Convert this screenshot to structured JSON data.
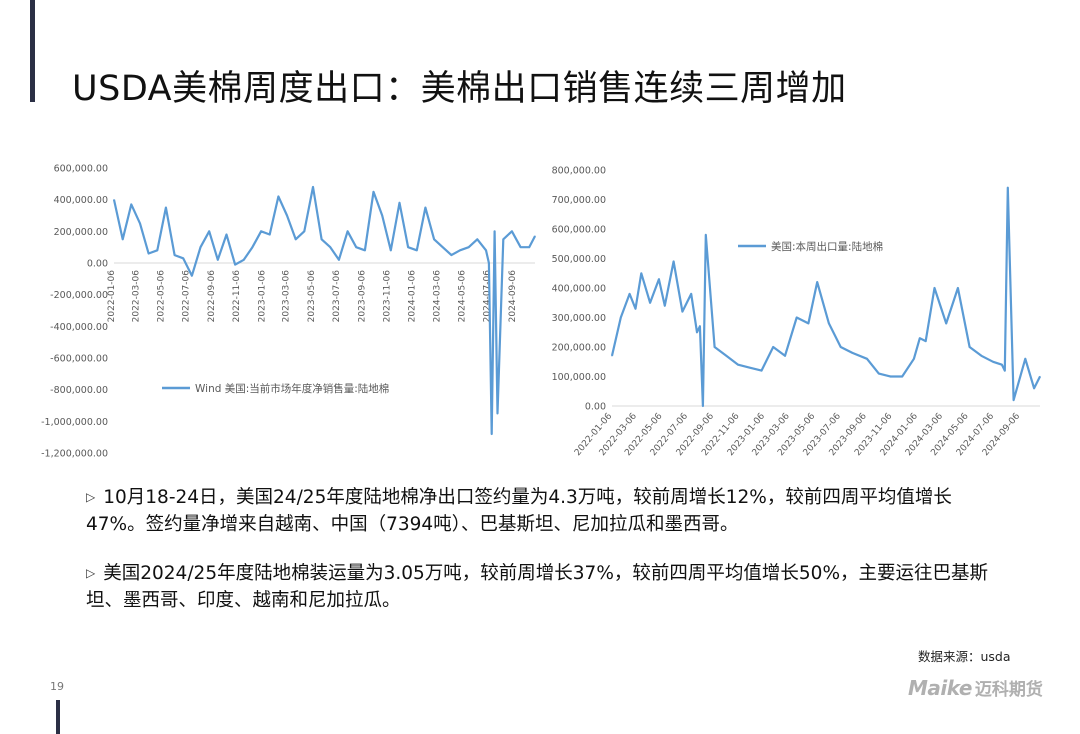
{
  "slide": {
    "title": "USDA美棉周度出口：美棉出口销售连续三周增加",
    "page_number": "19",
    "source": "数据来源：usda",
    "logo": {
      "latin": "Maike",
      "cn": "迈科期货"
    },
    "bullets": [
      "10月18-24日，美国24/25年度陆地棉净出口签约量为4.3万吨，较前周增长12%，较前四周平均值增长47%。签约量净增来自越南、中国（7394吨）、巴基斯坦、尼加拉瓜和墨西哥。",
      "美国2024/25年度陆地棉装运量为3.05万吨，较前周增长37%，较前四周平均值增长50%，主要运往巴基斯坦、墨西哥、印度、越南和尼加拉瓜。"
    ]
  },
  "colors": {
    "line": "#5b9bd5",
    "axis_text": "#595959",
    "accent": "#2b2f45"
  },
  "chart_data": [
    {
      "type": "line",
      "legend": "Wind 美国:当前市场年度净销售量:陆地棉",
      "legend_position": "lower-middle",
      "ylim": [
        -1200000,
        600000
      ],
      "yticks": [
        600000,
        400000,
        200000,
        0,
        -200000,
        -400000,
        -600000,
        -800000,
        -1000000,
        -1200000
      ],
      "ytick_labels": [
        "600,000.00",
        "400,000.00",
        "200,000.00",
        "0.00",
        "-200,000.00",
        "-400,000.00",
        "-600,000.00",
        "-800,000.00",
        "-1,000,000.00",
        "-1,200,000.00"
      ],
      "xlim": [
        "2022-01-06",
        "2024-10-24"
      ],
      "xticks": [
        "2022-01-06",
        "2022-03-06",
        "2022-05-06",
        "2022-07-06",
        "2022-09-06",
        "2022-11-06",
        "2023-01-06",
        "2023-03-06",
        "2023-05-06",
        "2023-07-06",
        "2023-09-06",
        "2023-11-06",
        "2024-01-06",
        "2024-03-06",
        "2024-05-06",
        "2024-07-06",
        "2024-09-06"
      ],
      "series": [
        {
          "x": [
            "2022-01-06",
            "2022-01-27",
            "2022-02-17",
            "2022-03-10",
            "2022-03-31",
            "2022-04-21",
            "2022-05-12",
            "2022-06-02",
            "2022-06-23",
            "2022-07-14",
            "2022-08-04",
            "2022-08-25",
            "2022-09-15",
            "2022-10-06",
            "2022-10-27",
            "2022-11-17",
            "2022-12-08",
            "2022-12-29",
            "2023-01-19",
            "2023-02-09",
            "2023-03-02",
            "2023-03-23",
            "2023-04-13",
            "2023-05-04",
            "2023-05-25",
            "2023-06-15",
            "2023-07-06",
            "2023-07-27",
            "2023-08-17",
            "2023-09-07",
            "2023-09-28",
            "2023-10-19",
            "2023-11-09",
            "2023-11-30",
            "2023-12-21",
            "2024-01-11",
            "2024-02-01",
            "2024-02-22",
            "2024-03-14",
            "2024-04-04",
            "2024-04-25",
            "2024-05-16",
            "2024-06-06",
            "2024-06-27",
            "2024-07-04",
            "2024-07-11",
            "2024-07-18",
            "2024-07-25",
            "2024-08-08",
            "2024-08-29",
            "2024-09-19",
            "2024-10-10",
            "2024-10-24"
          ],
          "y": [
            400000,
            150000,
            370000,
            250000,
            60000,
            80000,
            350000,
            50000,
            30000,
            -80000,
            100000,
            200000,
            20000,
            180000,
            -10000,
            20000,
            100000,
            200000,
            180000,
            420000,
            300000,
            150000,
            200000,
            480000,
            150000,
            100000,
            20000,
            200000,
            100000,
            80000,
            450000,
            300000,
            80000,
            380000,
            100000,
            80000,
            350000,
            150000,
            100000,
            50000,
            80000,
            100000,
            150000,
            80000,
            0,
            -1080000,
            200000,
            -950000,
            150000,
            200000,
            100000,
            100000,
            170000
          ]
        }
      ]
    },
    {
      "type": "line",
      "legend": "美国:本周出口量:陆地棉",
      "legend_position": "upper-left",
      "ylim": [
        0,
        800000
      ],
      "yticks": [
        800000,
        700000,
        600000,
        500000,
        400000,
        300000,
        200000,
        100000,
        0
      ],
      "ytick_labels": [
        "800,000.00",
        "700,000.00",
        "600,000.00",
        "500,000.00",
        "400,000.00",
        "300,000.00",
        "200,000.00",
        "100,000.00",
        "0.00"
      ],
      "xlim": [
        "2022-01-06",
        "2024-10-24"
      ],
      "xticks": [
        "2022-01-06",
        "2022-03-06",
        "2022-05-06",
        "2022-07-06",
        "2022-09-06",
        "2022-11-06",
        "2023-01-06",
        "2023-03-06",
        "2023-05-06",
        "2023-07-06",
        "2023-09-06",
        "2023-11-06",
        "2024-01-06",
        "2024-03-06",
        "2024-05-06",
        "2024-07-06",
        "2024-09-06"
      ],
      "series": [
        {
          "x": [
            "2022-01-06",
            "2022-01-27",
            "2022-02-17",
            "2022-03-03",
            "2022-03-17",
            "2022-04-07",
            "2022-04-28",
            "2022-05-12",
            "2022-06-02",
            "2022-06-23",
            "2022-07-14",
            "2022-07-28",
            "2022-08-04",
            "2022-08-11",
            "2022-08-18",
            "2022-09-08",
            "2022-10-06",
            "2022-11-03",
            "2022-12-01",
            "2022-12-29",
            "2023-01-26",
            "2023-02-23",
            "2023-03-23",
            "2023-04-20",
            "2023-05-11",
            "2023-06-08",
            "2023-07-06",
            "2023-08-03",
            "2023-09-07",
            "2023-10-05",
            "2023-11-02",
            "2023-11-30",
            "2023-12-28",
            "2024-01-11",
            "2024-01-25",
            "2024-02-15",
            "2024-03-14",
            "2024-04-11",
            "2024-05-09",
            "2024-06-06",
            "2024-07-04",
            "2024-07-25",
            "2024-08-01",
            "2024-08-08",
            "2024-08-22",
            "2024-09-19",
            "2024-10-10",
            "2024-10-24"
          ],
          "y": [
            170000,
            300000,
            380000,
            330000,
            450000,
            350000,
            430000,
            340000,
            490000,
            320000,
            380000,
            250000,
            270000,
            0,
            580000,
            200000,
            170000,
            140000,
            130000,
            120000,
            200000,
            170000,
            300000,
            280000,
            420000,
            280000,
            200000,
            180000,
            160000,
            110000,
            100000,
            100000,
            160000,
            230000,
            220000,
            400000,
            280000,
            400000,
            200000,
            170000,
            150000,
            140000,
            120000,
            740000,
            20000,
            160000,
            60000,
            100000
          ]
        }
      ]
    }
  ]
}
